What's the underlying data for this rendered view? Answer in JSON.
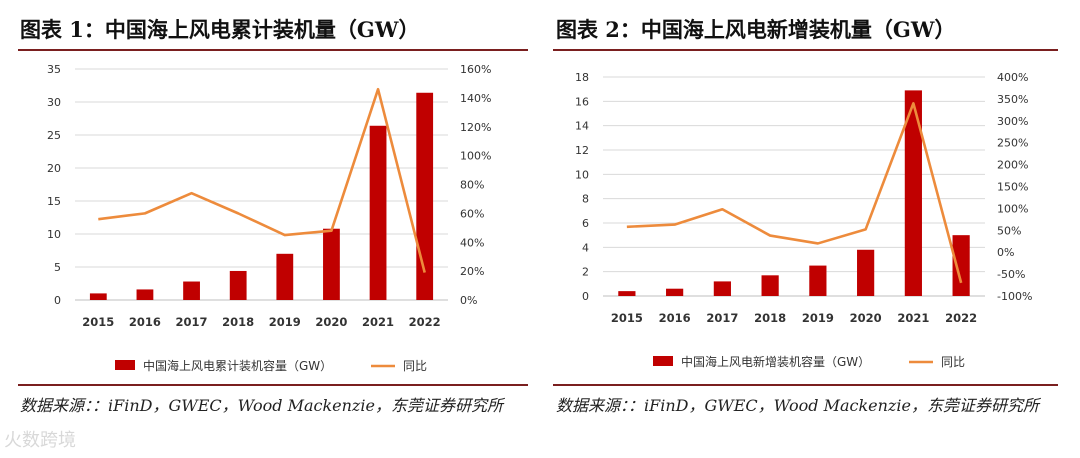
{
  "figures": [
    {
      "title": "图表 1：中国海上风电累计装机量（GW）",
      "source": "数据来源：：iFinD，GWEC，Wood Mackenzie，东莞证券研究所"
    },
    {
      "title": "图表 2：中国海上风电新增装机量（GW）",
      "source": "数据来源：：iFinD，GWEC，Wood Mackenzie，东莞证券研究所"
    }
  ],
  "watermark": "火数跨境",
  "chart_data": [
    {
      "type": "bar",
      "categories": [
        "2015",
        "2016",
        "2017",
        "2018",
        "2019",
        "2020",
        "2021",
        "2022"
      ],
      "series": [
        {
          "name": "中国海上风电累计装机容量（GW）",
          "type": "bar",
          "axis": "left",
          "color": "#c00000",
          "values": [
            1.0,
            1.6,
            2.8,
            4.4,
            7.0,
            10.8,
            26.4,
            31.4
          ]
        },
        {
          "name": "同比",
          "type": "line",
          "axis": "right",
          "color": "#ed8b3c",
          "values": [
            56,
            60,
            74,
            60,
            45,
            48,
            146,
            19
          ]
        }
      ],
      "ylim": [
        0,
        35
      ],
      "yticks": [
        0,
        5,
        10,
        15,
        20,
        25,
        30,
        35
      ],
      "y2lim": [
        0,
        160
      ],
      "y2ticks": [
        "0%",
        "20%",
        "40%",
        "60%",
        "80%",
        "100%",
        "120%",
        "140%",
        "160%"
      ],
      "grid": true,
      "legend": "bottom"
    },
    {
      "type": "bar",
      "categories": [
        "2015",
        "2016",
        "2017",
        "2018",
        "2019",
        "2020",
        "2021",
        "2022"
      ],
      "series": [
        {
          "name": "中国海上风电新增装机容量（GW）",
          "type": "bar",
          "axis": "left",
          "color": "#c00000",
          "values": [
            0.4,
            0.6,
            1.2,
            1.7,
            2.5,
            3.8,
            16.9,
            5.0
          ]
        },
        {
          "name": "同比",
          "type": "line",
          "axis": "right",
          "color": "#ed8b3c",
          "values": [
            58,
            63,
            98,
            38,
            20,
            52,
            340,
            -70
          ]
        }
      ],
      "ylim": [
        0,
        18
      ],
      "yticks": [
        0,
        2,
        4,
        6,
        8,
        10,
        12,
        14,
        16,
        18
      ],
      "y2lim": [
        -100,
        400
      ],
      "y2ticks": [
        "-100%",
        "-50%",
        "0%",
        "50%",
        "100%",
        "150%",
        "200%",
        "250%",
        "300%",
        "350%",
        "400%"
      ],
      "grid": true,
      "legend": "bottom"
    }
  ]
}
